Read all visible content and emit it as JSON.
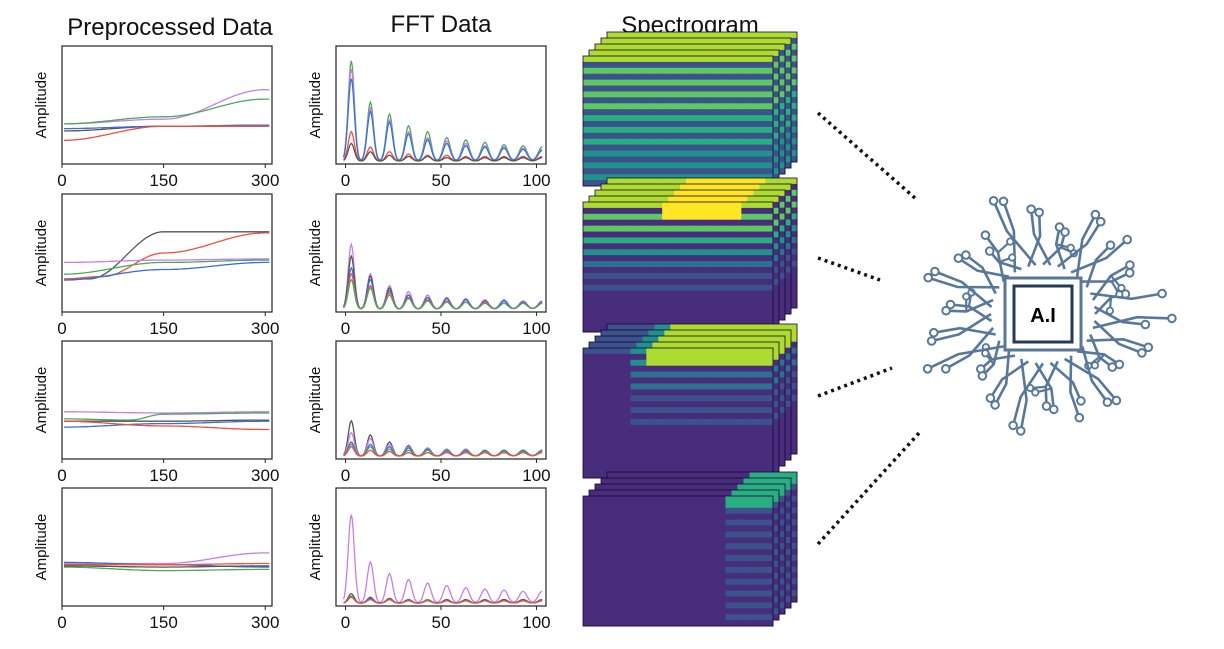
{
  "columns": {
    "preprocessed": "Preprocessed Data",
    "fft": "FFT Data",
    "spectrogram": "Spectrogram"
  },
  "ylabel": "Amplitude",
  "ai_label": "A.I",
  "colors": {
    "purple": "#c77ee8",
    "green": "#4fa85a",
    "red": "#f0503c",
    "blue": "#3a6fd8",
    "black": "#555555",
    "circuit": "#58789b"
  },
  "chart_data": [
    {
      "type": "line",
      "panel": "preprocessed-1",
      "xticks": [
        "0",
        "150",
        "300"
      ],
      "xlim": [
        0,
        310
      ],
      "ylim": [
        0,
        1
      ],
      "series": [
        {
          "color": "purple",
          "points": [
            [
              0,
              0.34
            ],
            [
              150,
              0.38
            ],
            [
              300,
              0.63
            ]
          ]
        },
        {
          "color": "green",
          "points": [
            [
              0,
              0.34
            ],
            [
              150,
              0.4
            ],
            [
              300,
              0.55
            ]
          ]
        },
        {
          "color": "black",
          "points": [
            [
              0,
              0.28
            ],
            [
              150,
              0.32
            ],
            [
              300,
              0.32
            ]
          ]
        },
        {
          "color": "blue",
          "points": [
            [
              0,
              0.3
            ],
            [
              150,
              0.32
            ],
            [
              300,
              0.33
            ]
          ]
        },
        {
          "color": "red",
          "points": [
            [
              0,
              0.2
            ],
            [
              150,
              0.32
            ],
            [
              300,
              0.32
            ]
          ]
        }
      ]
    },
    {
      "type": "line",
      "panel": "preprocessed-2",
      "xticks": [
        "0",
        "150",
        "300"
      ],
      "xlim": [
        0,
        310
      ],
      "ylim": [
        0,
        1
      ],
      "series": [
        {
          "color": "black",
          "points": [
            [
              0,
              0.28
            ],
            [
              40,
              0.28
            ],
            [
              150,
              0.68
            ],
            [
              300,
              0.68
            ]
          ]
        },
        {
          "color": "red",
          "points": [
            [
              0,
              0.28
            ],
            [
              60,
              0.3
            ],
            [
              150,
              0.5
            ],
            [
              300,
              0.67
            ]
          ]
        },
        {
          "color": "purple",
          "points": [
            [
              0,
              0.42
            ],
            [
              150,
              0.44
            ],
            [
              300,
              0.45
            ]
          ]
        },
        {
          "color": "green",
          "points": [
            [
              0,
              0.32
            ],
            [
              150,
              0.42
            ],
            [
              300,
              0.44
            ]
          ]
        },
        {
          "color": "blue",
          "points": [
            [
              0,
              0.27
            ],
            [
              150,
              0.36
            ],
            [
              300,
              0.42
            ]
          ]
        }
      ]
    },
    {
      "type": "line",
      "panel": "preprocessed-3",
      "xticks": [
        "0",
        "150",
        "300"
      ],
      "xlim": [
        0,
        310
      ],
      "ylim": [
        0,
        1
      ],
      "series": [
        {
          "color": "purple",
          "points": [
            [
              0,
              0.4
            ],
            [
              150,
              0.39
            ],
            [
              300,
              0.4
            ]
          ]
        },
        {
          "color": "green",
          "points": [
            [
              0,
              0.34
            ],
            [
              100,
              0.33
            ],
            [
              150,
              0.38
            ],
            [
              300,
              0.39
            ]
          ]
        },
        {
          "color": "black",
          "points": [
            [
              0,
              0.32
            ],
            [
              150,
              0.32
            ],
            [
              300,
              0.33
            ]
          ]
        },
        {
          "color": "blue",
          "points": [
            [
              0,
              0.27
            ],
            [
              150,
              0.3
            ],
            [
              300,
              0.32
            ]
          ]
        },
        {
          "color": "red",
          "points": [
            [
              0,
              0.32
            ],
            [
              150,
              0.28
            ],
            [
              300,
              0.25
            ]
          ]
        }
      ]
    },
    {
      "type": "line",
      "panel": "preprocessed-4",
      "xticks": [
        "0",
        "150",
        "300"
      ],
      "xlim": [
        0,
        310
      ],
      "ylim": [
        0,
        1
      ],
      "series": [
        {
          "color": "purple",
          "points": [
            [
              0,
              0.36
            ],
            [
              150,
              0.36
            ],
            [
              300,
              0.45
            ]
          ]
        },
        {
          "color": "blue",
          "points": [
            [
              0,
              0.37
            ],
            [
              150,
              0.35
            ],
            [
              300,
              0.33
            ]
          ]
        },
        {
          "color": "red",
          "points": [
            [
              0,
              0.35
            ],
            [
              150,
              0.35
            ],
            [
              300,
              0.36
            ]
          ]
        },
        {
          "color": "green",
          "points": [
            [
              0,
              0.33
            ],
            [
              150,
              0.3
            ],
            [
              300,
              0.31
            ]
          ]
        },
        {
          "color": "black",
          "points": [
            [
              0,
              0.34
            ],
            [
              150,
              0.33
            ],
            [
              300,
              0.34
            ]
          ]
        }
      ]
    },
    {
      "type": "line",
      "panel": "fft-1",
      "xticks": [
        "0",
        "50",
        "100"
      ],
      "xlim": [
        -5,
        105
      ],
      "ylim": [
        0,
        1
      ],
      "peaks": [
        3,
        13,
        23,
        33,
        43,
        53,
        63,
        73,
        83,
        93,
        103
      ],
      "series": [
        {
          "color": "green",
          "heights": [
            0.85,
            0.5,
            0.4,
            0.3,
            0.25,
            0.2,
            0.18,
            0.16,
            0.14,
            0.13,
            0.12
          ]
        },
        {
          "color": "purple",
          "heights": [
            0.78,
            0.45,
            0.35,
            0.25,
            0.2,
            0.17,
            0.15,
            0.13,
            0.12,
            0.11,
            0.1
          ]
        },
        {
          "color": "blue",
          "heights": [
            0.7,
            0.42,
            0.33,
            0.23,
            0.18,
            0.15,
            0.13,
            0.12,
            0.11,
            0.1,
            0.09
          ]
        },
        {
          "color": "red",
          "heights": [
            0.25,
            0.12,
            0.08,
            0.06,
            0.05,
            0.05,
            0.04,
            0.04,
            0.04,
            0.04,
            0.04
          ]
        },
        {
          "color": "black",
          "heights": [
            0.15,
            0.08,
            0.05,
            0.04,
            0.04,
            0.03,
            0.03,
            0.03,
            0.03,
            0.03,
            0.03
          ]
        }
      ]
    },
    {
      "type": "line",
      "panel": "fft-2",
      "xticks": [
        "0",
        "50",
        "100"
      ],
      "xlim": [
        -5,
        105
      ],
      "ylim": [
        0,
        1
      ],
      "peaks": [
        3,
        13,
        23,
        33,
        43,
        53,
        63,
        73,
        83,
        93,
        103
      ],
      "series": [
        {
          "color": "purple",
          "heights": [
            0.55,
            0.3,
            0.2,
            0.15,
            0.12,
            0.1,
            0.09,
            0.08,
            0.08,
            0.07,
            0.07
          ]
        },
        {
          "color": "black",
          "heights": [
            0.45,
            0.28,
            0.18,
            0.12,
            0.1,
            0.09,
            0.08,
            0.07,
            0.07,
            0.06,
            0.06
          ]
        },
        {
          "color": "blue",
          "heights": [
            0.35,
            0.25,
            0.16,
            0.12,
            0.1,
            0.09,
            0.08,
            0.07,
            0.07,
            0.06,
            0.06
          ]
        },
        {
          "color": "red",
          "heights": [
            0.3,
            0.2,
            0.14,
            0.1,
            0.08,
            0.07,
            0.06,
            0.06,
            0.05,
            0.05,
            0.05
          ]
        },
        {
          "color": "green",
          "heights": [
            0.25,
            0.18,
            0.12,
            0.09,
            0.07,
            0.06,
            0.06,
            0.05,
            0.05,
            0.05,
            0.05
          ]
        }
      ]
    },
    {
      "type": "line",
      "panel": "fft-3",
      "xticks": [
        "0",
        "50",
        "100"
      ],
      "xlim": [
        -5,
        105
      ],
      "ylim": [
        0,
        1
      ],
      "peaks": [
        3,
        13,
        23,
        33,
        43,
        53,
        63,
        73,
        83,
        93,
        103
      ],
      "series": [
        {
          "color": "black",
          "heights": [
            0.3,
            0.18,
            0.12,
            0.09,
            0.07,
            0.06,
            0.06,
            0.05,
            0.05,
            0.05,
            0.05
          ]
        },
        {
          "color": "purple",
          "heights": [
            0.2,
            0.15,
            0.1,
            0.08,
            0.07,
            0.06,
            0.06,
            0.05,
            0.05,
            0.05,
            0.05
          ]
        },
        {
          "color": "blue",
          "heights": [
            0.12,
            0.1,
            0.08,
            0.07,
            0.06,
            0.05,
            0.05,
            0.05,
            0.05,
            0.05,
            0.05
          ]
        },
        {
          "color": "green",
          "heights": [
            0.1,
            0.08,
            0.06,
            0.05,
            0.05,
            0.04,
            0.04,
            0.04,
            0.04,
            0.04,
            0.04
          ]
        },
        {
          "color": "red",
          "heights": [
            0.08,
            0.05,
            0.04,
            0.03,
            0.03,
            0.03,
            0.03,
            0.03,
            0.03,
            0.03,
            0.03
          ]
        }
      ]
    },
    {
      "type": "line",
      "panel": "fft-4",
      "xticks": [
        "0",
        "50",
        "100"
      ],
      "xlim": [
        -5,
        105
      ],
      "ylim": [
        0,
        1
      ],
      "peaks": [
        3,
        13,
        23,
        33,
        43,
        53,
        63,
        73,
        83,
        93,
        103
      ],
      "series": [
        {
          "color": "purple",
          "heights": [
            0.75,
            0.35,
            0.25,
            0.2,
            0.17,
            0.15,
            0.13,
            0.12,
            0.11,
            0.1,
            0.1
          ]
        },
        {
          "color": "black",
          "heights": [
            0.08,
            0.05,
            0.04,
            0.03,
            0.03,
            0.03,
            0.03,
            0.03,
            0.03,
            0.03,
            0.03
          ]
        },
        {
          "color": "green",
          "heights": [
            0.06,
            0.04,
            0.03,
            0.03,
            0.03,
            0.02,
            0.02,
            0.02,
            0.02,
            0.02,
            0.02
          ]
        },
        {
          "color": "blue",
          "heights": [
            0.05,
            0.04,
            0.03,
            0.03,
            0.02,
            0.02,
            0.02,
            0.02,
            0.02,
            0.02,
            0.02
          ]
        },
        {
          "color": "red",
          "heights": [
            0.05,
            0.03,
            0.03,
            0.02,
            0.02,
            0.02,
            0.02,
            0.02,
            0.02,
            0.02,
            0.02
          ]
        }
      ]
    }
  ]
}
